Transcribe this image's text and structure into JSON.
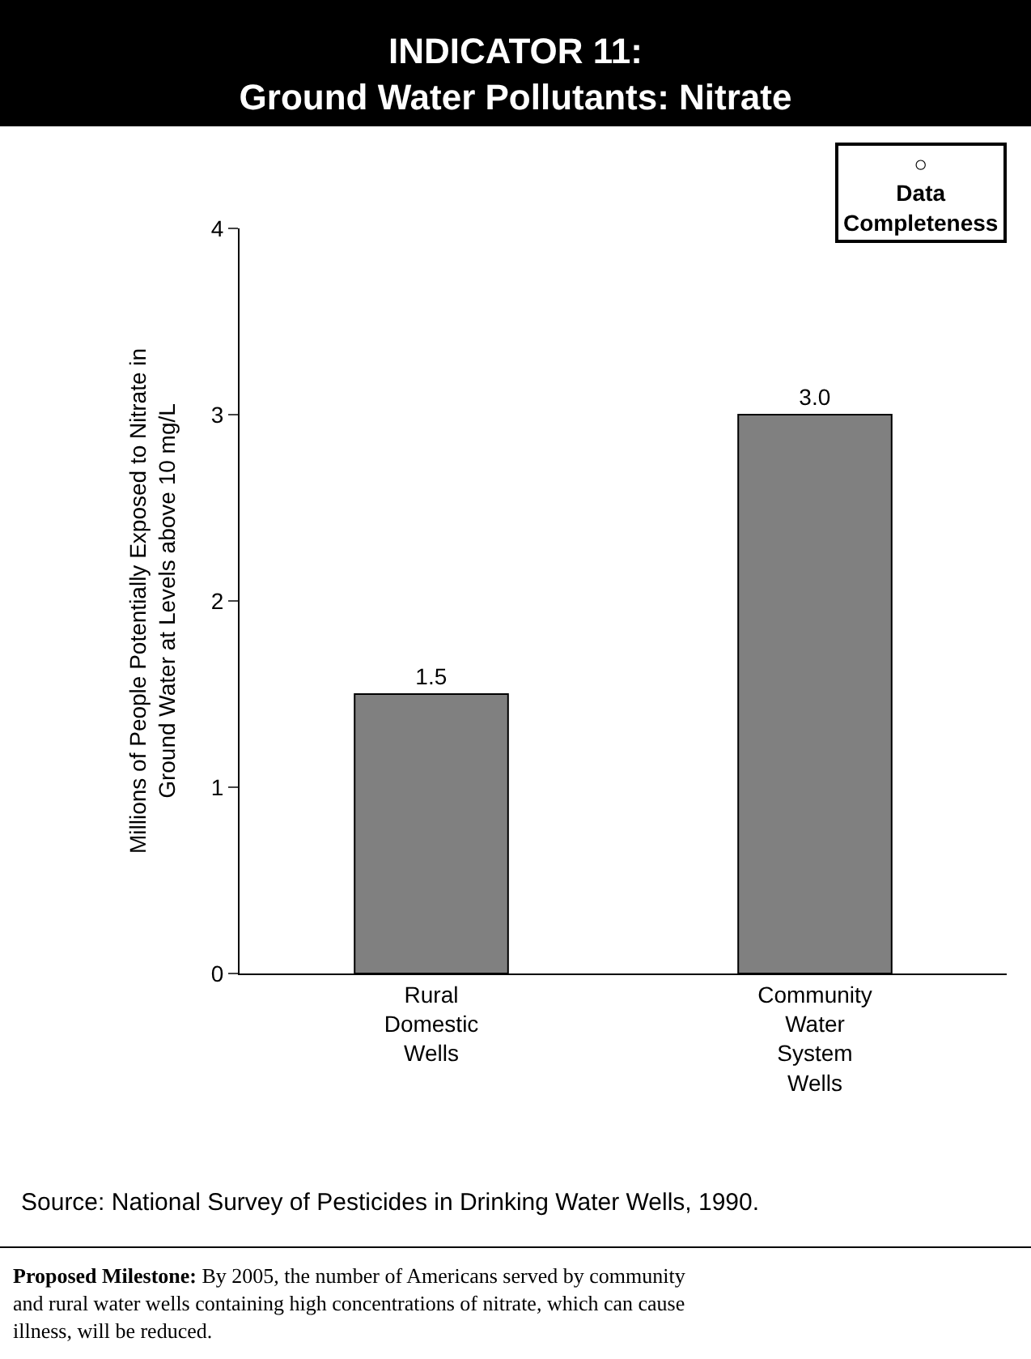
{
  "chart_data": {
    "type": "bar",
    "title": "INDICATOR 11:\nGround Water Pollutants: Nitrate",
    "ylabel": "Millions of People Potentially Exposed to Nitrate in\nGround Water at Levels above 10 mg/L",
    "categories": [
      "Rural\nDomestic\nWells",
      "Community\nWater\nSystem\nWells"
    ],
    "values": [
      1.5,
      3.0
    ],
    "color": "#808080",
    "value_labels": [
      "1.5",
      "3.0"
    ],
    "ylim": [
      0,
      4
    ],
    "yticks": [
      0,
      1,
      2,
      3,
      4
    ],
    "legend": false,
    "annotations": [
      "○\nData\nCompleteness",
      "Source: National Survey of Pesticides in Drinking Water Wells, 1990.",
      "Proposed Milestone: By 2005, the number of Americans served by community\nand rural water wells containing high concentrations of nitrate, which can cause\nillness, will be reduced."
    ]
  }
}
